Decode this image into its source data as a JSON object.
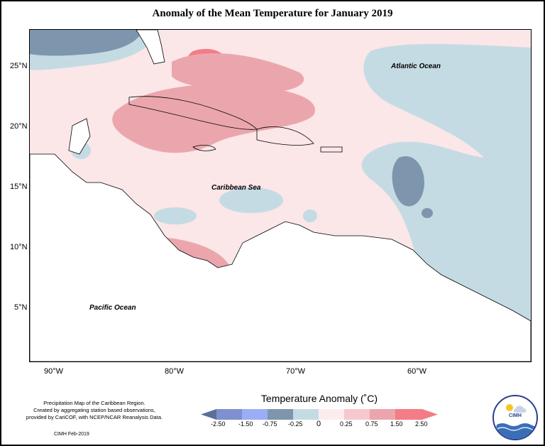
{
  "title": "Anomaly of the Mean Temperature for January 2019",
  "map": {
    "lat_labels": [
      "25°N",
      "20°N",
      "15°N",
      "10°N",
      "5°N"
    ],
    "lon_labels": [
      "90°W",
      "80°W",
      "70°W",
      "60°W"
    ],
    "region_labels": {
      "atlantic": "Atlantic Ocean",
      "caribbean": "Caribbean Sea",
      "pacific": "Pacific Ocean"
    }
  },
  "legend": {
    "title": "Temperature Anomaly (˚C)",
    "colors": [
      "#5b6f98",
      "#7f8fcf",
      "#9aaef5",
      "#7e96ad",
      "#c5dbe3",
      "#fdecee",
      "#f7c7ce",
      "#eba6ad",
      "#f47c86"
    ],
    "ticks": [
      "-2.50",
      "-1.50",
      "-0.75",
      "-0.25",
      "0",
      "0.25",
      "0.75",
      "1.50",
      "2.50"
    ]
  },
  "footer": {
    "note_line1": "Precipitation Map of the Caribbean Region.",
    "note_line2": "Created by aggregating station based observations,",
    "note_line3": "provided by CariCOF, with NCEP/NCAR Reanalysis Data.",
    "credit": "CIMH Feb-2019",
    "logo_text": "CIMH"
  }
}
